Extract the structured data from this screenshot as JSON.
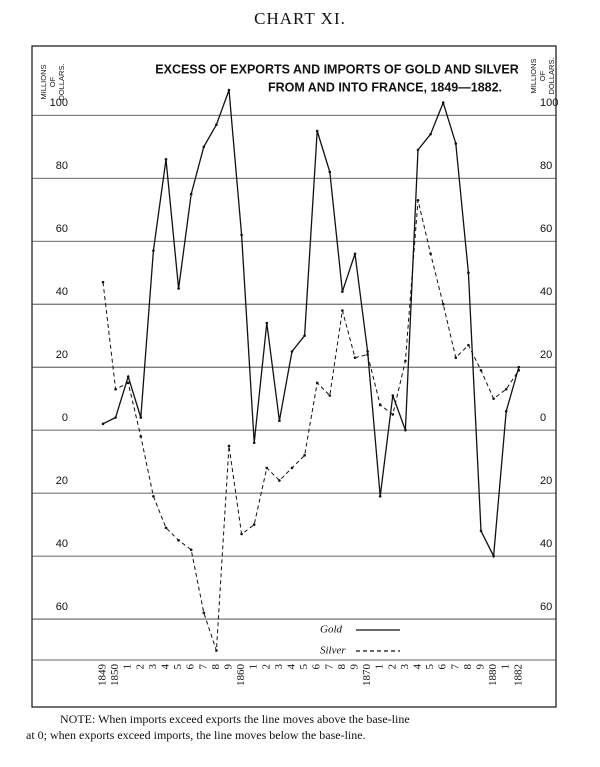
{
  "chart_data": {
    "type": "line",
    "heading": "CHART XI.",
    "title": [
      "EXCESS OF EXPORTS AND IMPORTS OF GOLD AND SILVER",
      "FROM AND INTO FRANCE, 1849—1882."
    ],
    "y_label": [
      "MILLIONS",
      "OF",
      "DOLLARS."
    ],
    "categories": [
      "1849",
      "1850",
      "1",
      "2",
      "3",
      "4",
      "5",
      "6",
      "7",
      "8",
      "9",
      "1860",
      "1",
      "2",
      "3",
      "4",
      "5",
      "6",
      "7",
      "8",
      "9",
      "1870",
      "1",
      "2",
      "3",
      "4",
      "5",
      "6",
      "7",
      "8",
      "9",
      "1880",
      "1",
      "1882"
    ],
    "series": [
      {
        "name": "Gold",
        "color": "#111111",
        "dash": false,
        "values": [
          2,
          4,
          17,
          4,
          57,
          86,
          45,
          75,
          90,
          97,
          108,
          62,
          -4,
          34,
          3,
          25,
          30,
          95,
          82,
          44,
          56,
          25,
          -21,
          11,
          0,
          89,
          94,
          104,
          91,
          50,
          -32,
          -40,
          6,
          20
        ]
      },
      {
        "name": "Silver",
        "color": "#111111",
        "dash": true,
        "values": [
          47,
          13,
          15,
          -2,
          -21,
          -31,
          -35,
          -38,
          -58,
          -70,
          -5,
          -33,
          -30,
          -12,
          -16,
          -12,
          -8,
          15,
          11,
          38,
          23,
          24,
          8,
          5,
          22,
          73,
          56,
          40,
          23,
          27,
          19,
          10,
          13,
          19
        ]
      }
    ],
    "ylim": [
      -73,
      122
    ],
    "yticks": [
      100,
      80,
      60,
      40,
      20,
      0,
      {
        "value": -20,
        "label": "20"
      },
      {
        "value": -40,
        "label": "40"
      },
      {
        "value": -60,
        "label": "60"
      }
    ],
    "grid": true,
    "note": [
      "NOTE:  When imports  exceed exports the line moves above the base-line",
      "at 0; when exports exceed imports, the line moves below the base-line."
    ]
  }
}
